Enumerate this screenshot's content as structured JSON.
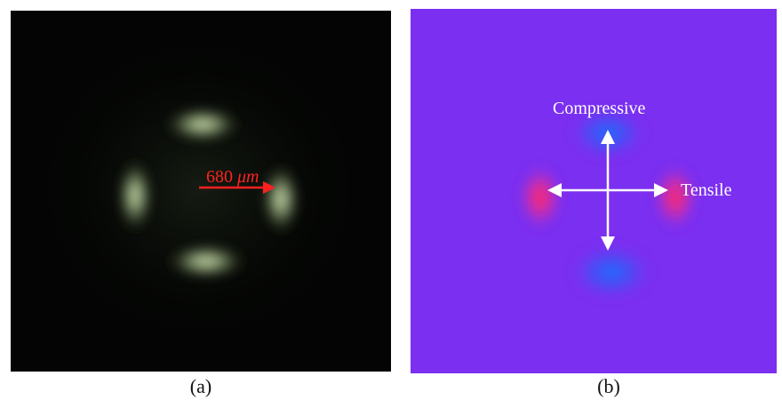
{
  "panel_a": {
    "caption": "(a)",
    "scale_value": "680",
    "scale_unit": "μm",
    "arrow_color": "#ff2020",
    "background_color": "#030403",
    "lobe_color": "#c8dcb0"
  },
  "panel_b": {
    "caption": "(b)",
    "compressive_label": "Compressive",
    "tensile_label": "Tensile",
    "background_color": "#7b2ff0",
    "compressive_color": "#2f63ff",
    "tensile_color": "#ff2a78",
    "arrow_color": "#ffffff"
  }
}
